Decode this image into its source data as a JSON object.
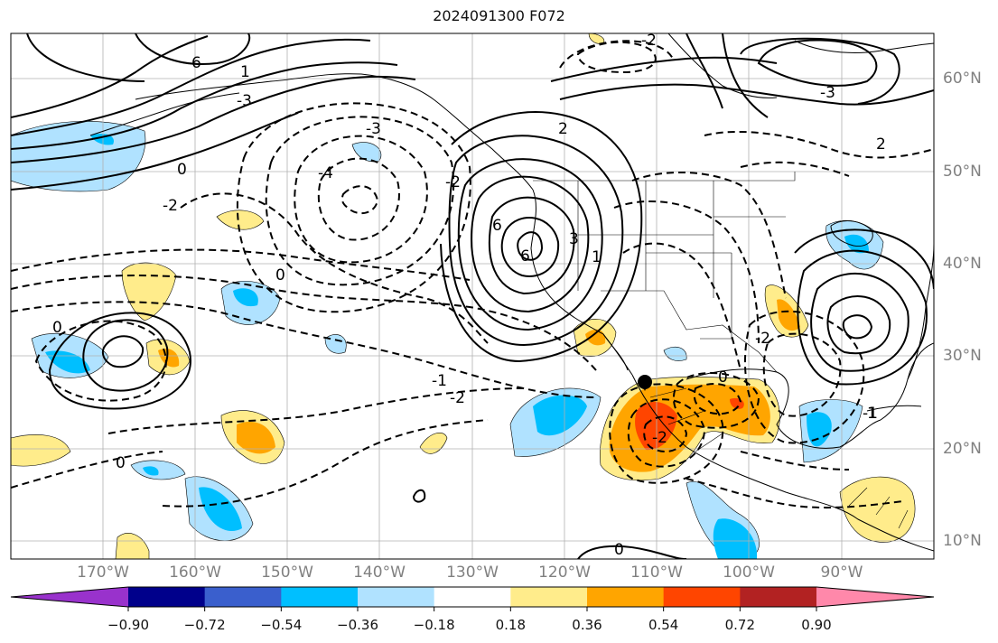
{
  "figure": {
    "title": "2024091300 F072"
  },
  "map": {
    "lon_labels": [
      "170°W",
      "160°W",
      "150°W",
      "140°W",
      "130°W",
      "120°W",
      "110°W",
      "100°W",
      "90°W"
    ],
    "lat_labels": [
      "60°N",
      "50°N",
      "40°N",
      "30°N",
      "20°N",
      "10°N"
    ],
    "contour_labels": [
      "-2",
      "-2",
      "-3",
      "-4",
      "-3",
      "-2",
      "-1",
      "-1",
      "-2",
      "-2",
      "-2",
      "-3",
      "0",
      "0",
      "0",
      "0",
      "0",
      "0",
      "1",
      "1",
      "1",
      "2",
      "2",
      "3",
      "6",
      "6",
      "6"
    ],
    "marker": "filled-circle"
  },
  "colorbar": {
    "ticks": [
      "−0.90",
      "−0.72",
      "−0.54",
      "−0.36",
      "−0.18",
      "0.18",
      "0.36",
      "0.54",
      "0.72",
      "0.90"
    ],
    "colors": [
      "#9932cc",
      "#00008b",
      "#3a5fcd",
      "#00bfff",
      "#b0e2ff",
      "#ffffff",
      "#ffec8b",
      "#ffa500",
      "#ff4500",
      "#b22222",
      "#ff88aa"
    ]
  }
}
